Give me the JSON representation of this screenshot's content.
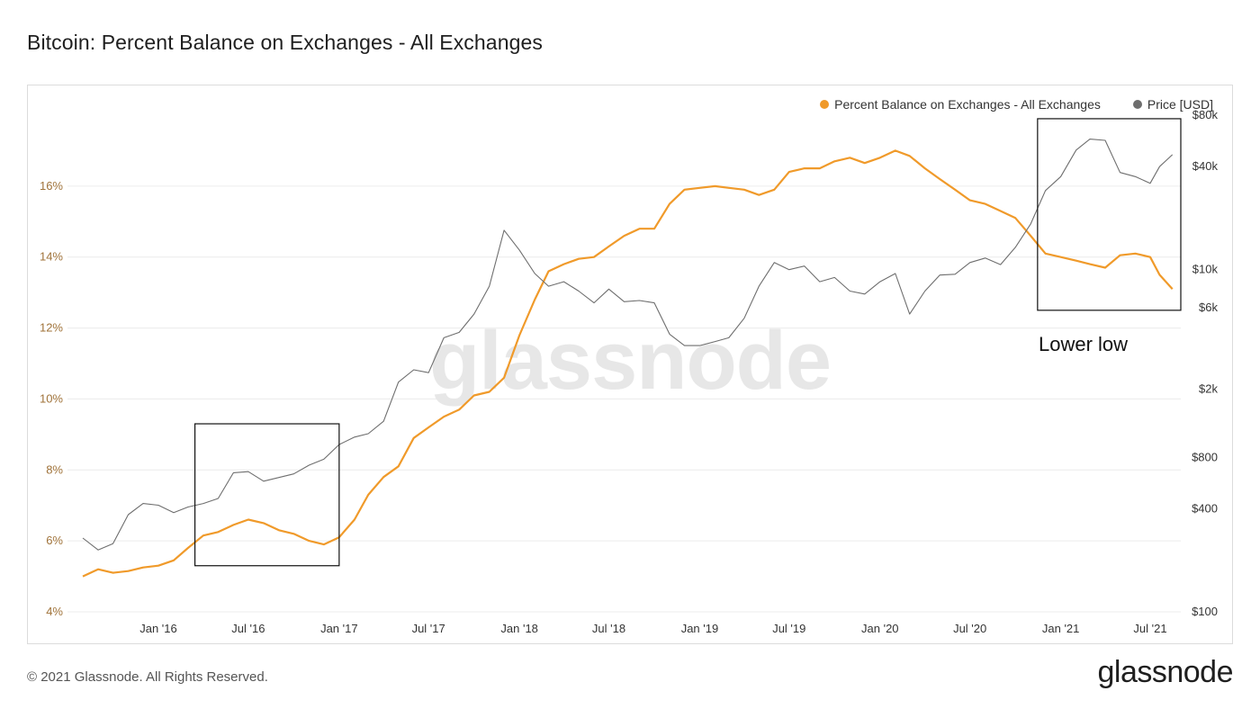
{
  "page": {
    "title": "Bitcoin: Percent Balance on Exchanges - All Exchanges",
    "footer_copyright": "© 2021 Glassnode. All Rights Reserved.",
    "footer_logo": "glassnode",
    "watermark": "glassnode"
  },
  "legend": {
    "balance_label": "Percent Balance on Exchanges - All Exchanges",
    "price_label": "Price [USD]"
  },
  "colors": {
    "balance": "#f09a2a",
    "price": "#6e6e6e",
    "left_ticks": "#a0733a",
    "grid": "#ececec"
  },
  "chart_data": {
    "type": "line",
    "x_range": [
      "2015-07-01",
      "2021-09-01"
    ],
    "x_ticks": [
      "Jan '16",
      "Jul '16",
      "Jan '17",
      "Jul '17",
      "Jan '18",
      "Jul '18",
      "Jan '19",
      "Jul '19",
      "Jan '20",
      "Jul '20",
      "Jan '21",
      "Jul '21"
    ],
    "y_left": {
      "label": "",
      "ticks": [
        "4%",
        "6%",
        "8%",
        "10%",
        "12%",
        "14%",
        "16%"
      ],
      "range": [
        4,
        18
      ]
    },
    "y_right": {
      "label": "",
      "scale": "log",
      "ticks": [
        "$100",
        "$400",
        "$800",
        "$2k",
        "$6k",
        "$10k",
        "$40k",
        "$80k"
      ],
      "range": [
        100,
        80000
      ]
    },
    "grid": true,
    "legend_position": "top-right",
    "series": [
      {
        "name": "Percent Balance on Exchanges - All Exchanges",
        "axis": "left",
        "points": [
          [
            "2015-08-01",
            5.0
          ],
          [
            "2015-09-01",
            5.2
          ],
          [
            "2015-10-01",
            5.1
          ],
          [
            "2015-11-01",
            5.15
          ],
          [
            "2015-12-01",
            5.25
          ],
          [
            "2016-01-01",
            5.3
          ],
          [
            "2016-02-01",
            5.45
          ],
          [
            "2016-03-01",
            5.8
          ],
          [
            "2016-04-01",
            6.15
          ],
          [
            "2016-05-01",
            6.25
          ],
          [
            "2016-06-01",
            6.45
          ],
          [
            "2016-07-01",
            6.6
          ],
          [
            "2016-08-01",
            6.5
          ],
          [
            "2016-09-01",
            6.3
          ],
          [
            "2016-10-01",
            6.2
          ],
          [
            "2016-11-01",
            6.0
          ],
          [
            "2016-12-01",
            5.9
          ],
          [
            "2017-01-01",
            6.1
          ],
          [
            "2017-02-01",
            6.6
          ],
          [
            "2017-03-01",
            7.3
          ],
          [
            "2017-04-01",
            7.8
          ],
          [
            "2017-05-01",
            8.1
          ],
          [
            "2017-06-01",
            8.9
          ],
          [
            "2017-07-01",
            9.2
          ],
          [
            "2017-08-01",
            9.5
          ],
          [
            "2017-09-01",
            9.7
          ],
          [
            "2017-10-01",
            10.1
          ],
          [
            "2017-11-01",
            10.2
          ],
          [
            "2017-12-01",
            10.6
          ],
          [
            "2018-01-01",
            11.8
          ],
          [
            "2018-02-01",
            12.8
          ],
          [
            "2018-03-01",
            13.6
          ],
          [
            "2018-04-01",
            13.8
          ],
          [
            "2018-05-01",
            13.95
          ],
          [
            "2018-06-01",
            14.0
          ],
          [
            "2018-07-01",
            14.3
          ],
          [
            "2018-08-01",
            14.6
          ],
          [
            "2018-09-01",
            14.8
          ],
          [
            "2018-10-01",
            14.8
          ],
          [
            "2018-11-01",
            15.5
          ],
          [
            "2018-12-01",
            15.9
          ],
          [
            "2019-01-01",
            15.95
          ],
          [
            "2019-02-01",
            16.0
          ],
          [
            "2019-03-01",
            15.95
          ],
          [
            "2019-04-01",
            15.9
          ],
          [
            "2019-05-01",
            15.75
          ],
          [
            "2019-06-01",
            15.9
          ],
          [
            "2019-07-01",
            16.4
          ],
          [
            "2019-08-01",
            16.5
          ],
          [
            "2019-09-01",
            16.5
          ],
          [
            "2019-10-01",
            16.7
          ],
          [
            "2019-11-01",
            16.8
          ],
          [
            "2019-12-01",
            16.65
          ],
          [
            "2020-01-01",
            16.8
          ],
          [
            "2020-02-01",
            17.0
          ],
          [
            "2020-03-01",
            16.85
          ],
          [
            "2020-04-01",
            16.5
          ],
          [
            "2020-05-01",
            16.2
          ],
          [
            "2020-06-01",
            15.9
          ],
          [
            "2020-07-01",
            15.6
          ],
          [
            "2020-08-01",
            15.5
          ],
          [
            "2020-09-01",
            15.3
          ],
          [
            "2020-10-01",
            15.1
          ],
          [
            "2020-11-01",
            14.6
          ],
          [
            "2020-12-01",
            14.1
          ],
          [
            "2021-01-01",
            14.0
          ],
          [
            "2021-02-01",
            13.9
          ],
          [
            "2021-03-01",
            13.8
          ],
          [
            "2021-04-01",
            13.7
          ],
          [
            "2021-05-01",
            14.05
          ],
          [
            "2021-06-01",
            14.1
          ],
          [
            "2021-07-01",
            14.0
          ],
          [
            "2021-07-20",
            13.5
          ],
          [
            "2021-08-15",
            13.1
          ]
        ]
      },
      {
        "name": "Price [USD]",
        "axis": "right",
        "points": [
          [
            "2015-08-01",
            270
          ],
          [
            "2015-09-01",
            230
          ],
          [
            "2015-10-01",
            250
          ],
          [
            "2015-11-01",
            370
          ],
          [
            "2015-12-01",
            430
          ],
          [
            "2016-01-01",
            420
          ],
          [
            "2016-02-01",
            380
          ],
          [
            "2016-03-01",
            410
          ],
          [
            "2016-04-01",
            430
          ],
          [
            "2016-05-01",
            460
          ],
          [
            "2016-06-01",
            650
          ],
          [
            "2016-07-01",
            660
          ],
          [
            "2016-08-01",
            580
          ],
          [
            "2016-09-01",
            610
          ],
          [
            "2016-10-01",
            640
          ],
          [
            "2016-11-01",
            720
          ],
          [
            "2016-12-01",
            780
          ],
          [
            "2017-01-01",
            950
          ],
          [
            "2017-02-01",
            1050
          ],
          [
            "2017-03-01",
            1100
          ],
          [
            "2017-04-01",
            1300
          ],
          [
            "2017-05-01",
            2200
          ],
          [
            "2017-06-01",
            2600
          ],
          [
            "2017-07-01",
            2500
          ],
          [
            "2017-08-01",
            4000
          ],
          [
            "2017-09-01",
            4300
          ],
          [
            "2017-10-01",
            5500
          ],
          [
            "2017-11-01",
            8000
          ],
          [
            "2017-12-01",
            17000
          ],
          [
            "2018-01-01",
            13000
          ],
          [
            "2018-02-01",
            9500
          ],
          [
            "2018-03-01",
            8000
          ],
          [
            "2018-04-01",
            8500
          ],
          [
            "2018-05-01",
            7500
          ],
          [
            "2018-06-01",
            6400
          ],
          [
            "2018-07-01",
            7700
          ],
          [
            "2018-08-01",
            6500
          ],
          [
            "2018-09-01",
            6600
          ],
          [
            "2018-10-01",
            6400
          ],
          [
            "2018-11-01",
            4200
          ],
          [
            "2018-12-01",
            3600
          ],
          [
            "2019-01-01",
            3600
          ],
          [
            "2019-02-01",
            3800
          ],
          [
            "2019-03-01",
            4000
          ],
          [
            "2019-04-01",
            5200
          ],
          [
            "2019-05-01",
            8000
          ],
          [
            "2019-06-01",
            11000
          ],
          [
            "2019-07-01",
            10000
          ],
          [
            "2019-08-01",
            10500
          ],
          [
            "2019-09-01",
            8500
          ],
          [
            "2019-10-01",
            9000
          ],
          [
            "2019-11-01",
            7500
          ],
          [
            "2019-12-01",
            7200
          ],
          [
            "2020-01-01",
            8500
          ],
          [
            "2020-02-01",
            9500
          ],
          [
            "2020-03-01",
            5500
          ],
          [
            "2020-04-01",
            7500
          ],
          [
            "2020-05-01",
            9300
          ],
          [
            "2020-06-01",
            9400
          ],
          [
            "2020-07-01",
            11000
          ],
          [
            "2020-08-01",
            11700
          ],
          [
            "2020-09-01",
            10700
          ],
          [
            "2020-10-01",
            13500
          ],
          [
            "2020-11-01",
            18500
          ],
          [
            "2020-12-01",
            29000
          ],
          [
            "2021-01-01",
            35000
          ],
          [
            "2021-02-01",
            50000
          ],
          [
            "2021-03-01",
            58000
          ],
          [
            "2021-04-01",
            57000
          ],
          [
            "2021-05-01",
            37000
          ],
          [
            "2021-06-01",
            35000
          ],
          [
            "2021-07-01",
            32000
          ],
          [
            "2021-07-20",
            40000
          ],
          [
            "2021-08-15",
            47000
          ]
        ]
      }
    ],
    "annotations": [
      {
        "type": "box",
        "x_from": "2016-03-15",
        "x_to": "2017-01-01",
        "y_from": 5.3,
        "y_to": 9.3
      },
      {
        "type": "box",
        "x_from": "2020-11-15",
        "x_to": "2021-09-01",
        "y_from": 12.5,
        "y_to": 17.9
      },
      {
        "type": "text",
        "text": "Lower low"
      }
    ]
  }
}
